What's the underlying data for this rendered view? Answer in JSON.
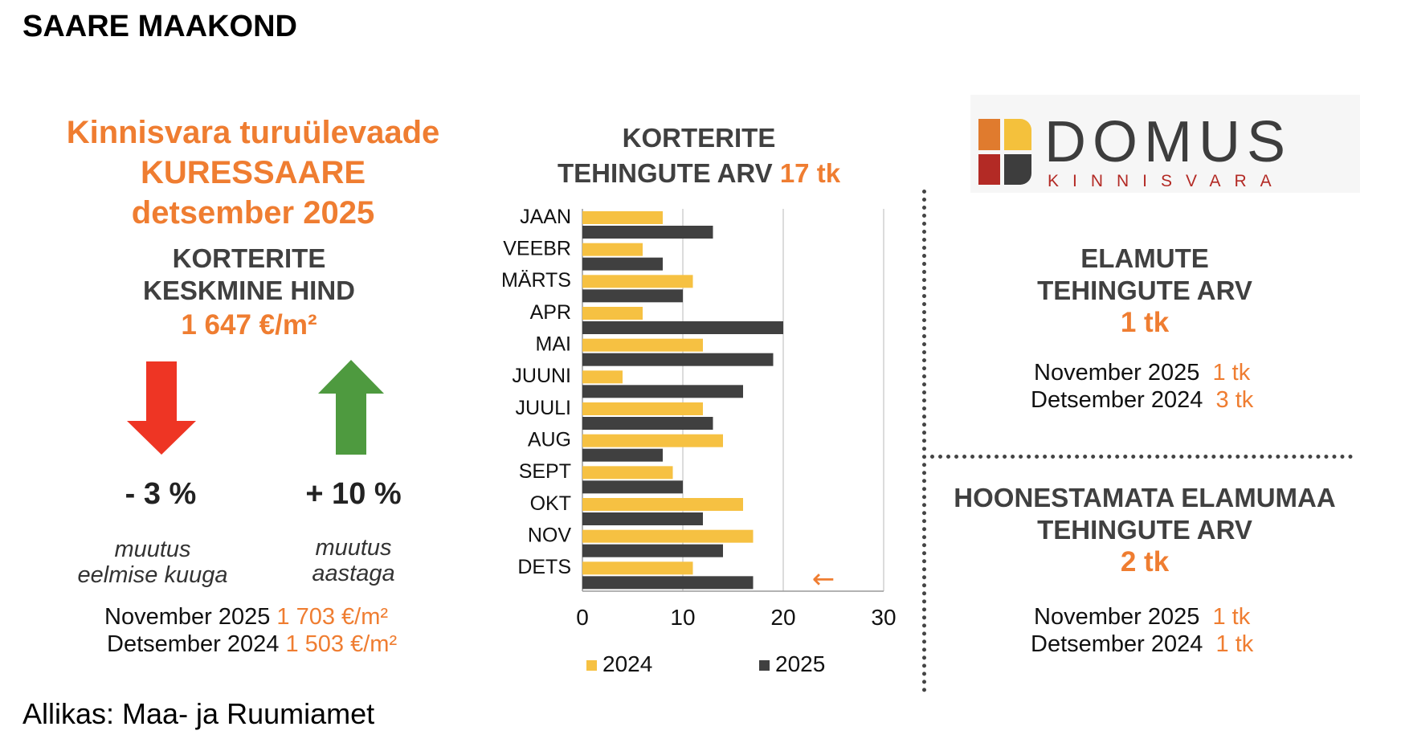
{
  "page": {
    "region_title": "SAARE MAAKOND",
    "source": "Allikas: Maa- ja Ruumiamet"
  },
  "overview": {
    "headline_line1": "Kinnisvara turuülevaade",
    "headline_line2": "KURESSAARE",
    "headline_line3": "detsember 2025",
    "price_label_line1": "KORTERITE",
    "price_label_line2": "KESKMINE HIND",
    "price_value": "1 647 €/m²",
    "monthly_change": "- 3 %",
    "monthly_desc_line1": "muutus",
    "monthly_desc_line2": "eelmise kuuga",
    "yearly_change": "+ 10 %",
    "yearly_desc_line1": "muutus",
    "yearly_desc_line2": "aastaga",
    "compare": [
      {
        "label": "November 2025",
        "value": "1 703 €/m²"
      },
      {
        "label": "Detsember 2024",
        "value": "1 503 €/m²"
      }
    ],
    "colors": {
      "down_arrow": "#ee3524",
      "up_arrow": "#4e9a3f",
      "accent": "#ef7d31"
    }
  },
  "chart_data": {
    "type": "bar",
    "orientation": "horizontal",
    "title_line1": "KORTERITE",
    "title_line2": "TEHINGUTE ARV",
    "title_value": "17 tk",
    "categories": [
      "JAAN",
      "VEEBR",
      "MÄRTS",
      "APR",
      "MAI",
      "JUUNI",
      "JUULI",
      "AUG",
      "SEPT",
      "OKT",
      "NOV",
      "DETS"
    ],
    "series": [
      {
        "name": "2024",
        "color": "#f6c142",
        "values": [
          8,
          6,
          11,
          6,
          12,
          4,
          12,
          14,
          9,
          16,
          17,
          11
        ]
      },
      {
        "name": "2025",
        "color": "#404040",
        "values": [
          13,
          8,
          10,
          20,
          19,
          16,
          13,
          8,
          10,
          12,
          14,
          17
        ]
      }
    ],
    "xlim": [
      0,
      30
    ],
    "xticks": [
      "0",
      "10",
      "20",
      "30"
    ],
    "grid": true,
    "legend_position": "bottom",
    "annotation": {
      "text": "←",
      "category": "DETS"
    }
  },
  "logo": {
    "name": "DOMUS",
    "tagline": "KINNISVARA",
    "colors": [
      "#e07b2e",
      "#f4c13c",
      "#b32a25",
      "#3d3d3d"
    ]
  },
  "houses": {
    "label_line1": "ELAMUTE",
    "label_line2": "TEHINGUTE ARV",
    "value": "1 tk",
    "compare": [
      {
        "label": "November 2025",
        "value": "1 tk"
      },
      {
        "label": "Detsember 2024",
        "value": "3 tk"
      }
    ]
  },
  "land": {
    "label_line1": "HOONESTAMATA ELAMUMAA",
    "label_line2": "TEHINGUTE ARV",
    "value": "2 tk",
    "compare": [
      {
        "label": "November 2025",
        "value": "1 tk"
      },
      {
        "label": "Detsember 2024",
        "value": "1 tk"
      }
    ]
  }
}
